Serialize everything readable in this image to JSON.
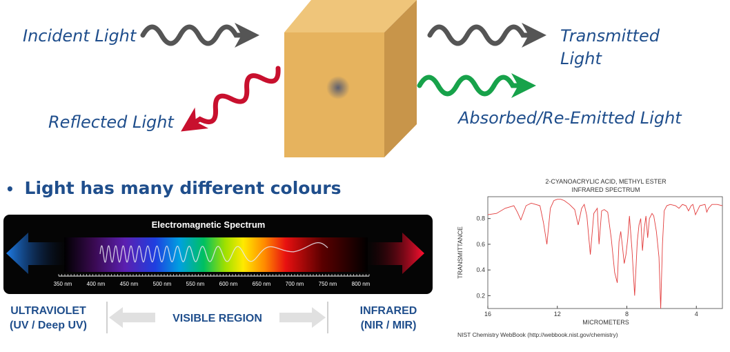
{
  "top": {
    "incident": "Incident Light",
    "transmitted_1": "Transmitted",
    "transmitted_2": "Light",
    "reflected": "Reflected Light",
    "absorbed": "Absorbed/Re-Emitted Light",
    "colors": {
      "incident": "#555555",
      "reflected": "#c8102e",
      "absorbed": "#17a24a",
      "cube_front": "#e6b35e",
      "cube_top": "#efc57a",
      "cube_side": "#c8954a"
    }
  },
  "bullet": {
    "marker": "•",
    "text": "Light has many different colours"
  },
  "spectrum": {
    "title": "Electromagnetic Spectrum",
    "ticks": [
      "350 nm",
      "400 nm",
      "450 nm",
      "500 nm",
      "550 nm",
      "600 nm",
      "650 nm",
      "700 nm",
      "750 nm",
      "800 nm"
    ],
    "uv_1": "ULTRAVIOLET",
    "uv_2": "(UV / Deep UV)",
    "visible": "VISIBLE REGION",
    "ir_1": "INFRARED",
    "ir_2": "(NIR / MIR)"
  },
  "ir_chart": {
    "title_1": "2-CYANOACRYLIC ACID, METHYL ESTER",
    "title_2": "INFRARED SPECTRUM",
    "ylabel": "TRANSMITTANCE",
    "xlabel": "MICROMETERS",
    "source": "NIST Chemistry WebBook (http://webbook.nist.gov/chemistry)",
    "xticks": [
      "16",
      "12",
      "8",
      "4"
    ],
    "yticks": [
      "0.8",
      "0.6",
      "0.4",
      "0.2"
    ]
  },
  "chart_data": {
    "type": "line",
    "title": "2-CYANOACRYLIC ACID, METHYL ESTER INFRARED SPECTRUM",
    "xlabel": "MICROMETERS",
    "ylabel": "TRANSMITTANCE",
    "xlim": [
      16,
      2.5
    ],
    "ylim": [
      0.1,
      0.97
    ],
    "series": [
      {
        "color": "#e23b3b",
        "x": [
          16,
          15.5,
          15,
          14.5,
          14.3,
          14.1,
          13.8,
          13.5,
          13.0,
          12.8,
          12.6,
          12.4,
          12.2,
          12.0,
          11.8,
          11.6,
          11.3,
          11.0,
          10.8,
          10.6,
          10.45,
          10.3,
          10.1,
          9.9,
          9.7,
          9.6,
          9.45,
          9.3,
          9.1,
          8.9,
          8.7,
          8.55,
          8.45,
          8.35,
          8.25,
          8.15,
          8.05,
          7.95,
          7.85,
          7.7,
          7.55,
          7.4,
          7.3,
          7.2,
          7.1,
          7.0,
          6.9,
          6.8,
          6.7,
          6.55,
          6.45,
          6.3,
          6.15,
          6.05,
          5.95,
          5.85,
          5.7,
          5.5,
          5.2,
          5.0,
          4.8,
          4.6,
          4.45,
          4.3,
          4.2,
          4.05,
          3.8,
          3.5,
          3.4,
          3.3,
          3.1,
          2.8,
          2.5
        ],
        "y": [
          0.83,
          0.84,
          0.88,
          0.9,
          0.85,
          0.79,
          0.9,
          0.92,
          0.9,
          0.77,
          0.6,
          0.88,
          0.94,
          0.95,
          0.95,
          0.94,
          0.91,
          0.87,
          0.75,
          0.88,
          0.91,
          0.82,
          0.52,
          0.84,
          0.88,
          0.6,
          0.86,
          0.87,
          0.85,
          0.65,
          0.38,
          0.3,
          0.62,
          0.7,
          0.58,
          0.45,
          0.52,
          0.64,
          0.82,
          0.55,
          0.2,
          0.62,
          0.75,
          0.8,
          0.55,
          0.72,
          0.82,
          0.65,
          0.8,
          0.84,
          0.82,
          0.7,
          0.5,
          0.1,
          0.6,
          0.86,
          0.9,
          0.91,
          0.9,
          0.88,
          0.91,
          0.9,
          0.86,
          0.9,
          0.91,
          0.83,
          0.9,
          0.91,
          0.85,
          0.88,
          0.91,
          0.91,
          0.9
        ]
      }
    ]
  }
}
